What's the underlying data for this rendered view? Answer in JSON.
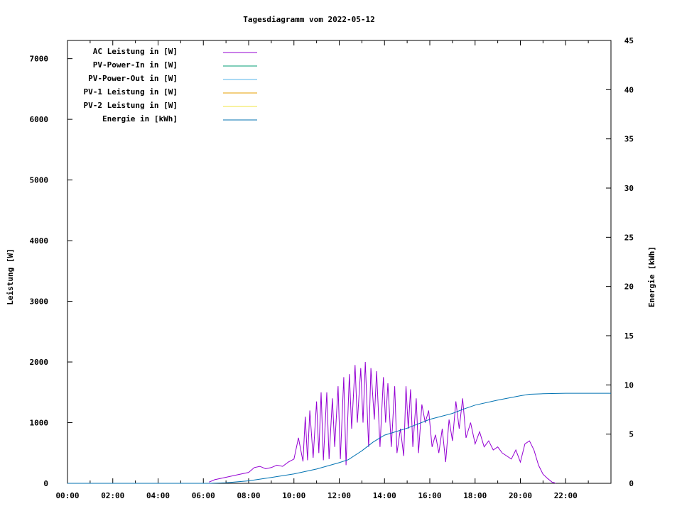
{
  "chart_data": {
    "type": "line",
    "title": "Tagesdiagramm vom 2022-05-12",
    "ylabel": "Leistung [W]",
    "y2label": "Energie [kWh]",
    "xlabel": "",
    "x_unit": "hours",
    "xlim": [
      0,
      24
    ],
    "ylim": [
      0,
      7300
    ],
    "y2lim": [
      0,
      45
    ],
    "x_ticks": [
      0,
      2,
      4,
      6,
      8,
      10,
      12,
      14,
      16,
      18,
      20,
      22
    ],
    "x_tick_labels": [
      "00:00",
      "02:00",
      "04:00",
      "06:00",
      "08:00",
      "10:00",
      "12:00",
      "14:00",
      "16:00",
      "18:00",
      "20:00",
      "22:00"
    ],
    "y_ticks": [
      0,
      1000,
      2000,
      3000,
      4000,
      5000,
      6000,
      7000
    ],
    "y_tick_labels": [
      "0",
      "1000",
      "2000",
      "3000",
      "4000",
      "5000",
      "6000",
      "7000"
    ],
    "y2_ticks": [
      0,
      5,
      10,
      15,
      20,
      25,
      30,
      35,
      40,
      45
    ],
    "y2_tick_labels": [
      "0",
      "5",
      "10",
      "15",
      "20",
      "25",
      "30",
      "35",
      "40",
      "45"
    ],
    "legend_position": "top-left",
    "grid": false,
    "series": [
      {
        "name": "AC Leistung in [W]",
        "axis": "left",
        "color": "#9400d3",
        "x": [
          6.25,
          6.5,
          7.0,
          7.5,
          8.0,
          8.25,
          8.5,
          8.75,
          9.0,
          9.25,
          9.5,
          9.75,
          10.0,
          10.2,
          10.4,
          10.5,
          10.6,
          10.7,
          10.85,
          11.0,
          11.1,
          11.2,
          11.3,
          11.45,
          11.55,
          11.7,
          11.8,
          11.95,
          12.05,
          12.2,
          12.3,
          12.45,
          12.55,
          12.7,
          12.8,
          12.95,
          13.05,
          13.15,
          13.3,
          13.4,
          13.55,
          13.65,
          13.8,
          13.95,
          14.05,
          14.15,
          14.3,
          14.45,
          14.55,
          14.7,
          14.85,
          14.95,
          15.05,
          15.15,
          15.25,
          15.4,
          15.5,
          15.65,
          15.8,
          15.95,
          16.1,
          16.25,
          16.4,
          16.55,
          16.7,
          16.85,
          17.0,
          17.15,
          17.3,
          17.45,
          17.6,
          17.8,
          18.0,
          18.2,
          18.4,
          18.6,
          18.8,
          19.0,
          19.2,
          19.4,
          19.6,
          19.8,
          20.0,
          20.2,
          20.4,
          20.6,
          20.8,
          21.0,
          21.2,
          21.4,
          21.5,
          21.55
        ],
        "y": [
          20,
          60,
          100,
          140,
          180,
          260,
          280,
          240,
          260,
          300,
          280,
          350,
          400,
          750,
          360,
          1100,
          380,
          1200,
          420,
          1350,
          500,
          1500,
          380,
          1500,
          400,
          1400,
          600,
          1600,
          400,
          1750,
          300,
          1800,
          900,
          1950,
          1000,
          1900,
          1000,
          2000,
          600,
          1900,
          1050,
          1850,
          600,
          1750,
          1000,
          1650,
          600,
          1600,
          500,
          900,
          450,
          1600,
          900,
          1550,
          600,
          1400,
          500,
          1300,
          1000,
          1200,
          600,
          800,
          500,
          900,
          350,
          1050,
          700,
          1350,
          900,
          1400,
          750,
          1000,
          650,
          850,
          600,
          700,
          550,
          600,
          500,
          450,
          400,
          550,
          350,
          650,
          700,
          550,
          300,
          150,
          80,
          20,
          10,
          0
        ]
      },
      {
        "name": "PV-Power-In in [W]",
        "axis": "left",
        "color": "#009e73",
        "x": [],
        "y": []
      },
      {
        "name": "PV-Power-Out in [W]",
        "axis": "left",
        "color": "#56b4e9",
        "x": [],
        "y": []
      },
      {
        "name": "PV-1 Leistung in [W]",
        "axis": "left",
        "color": "#e69f00",
        "x": [],
        "y": []
      },
      {
        "name": "PV-2 Leistung in [W]",
        "axis": "left",
        "color": "#f0e442",
        "x": [],
        "y": []
      },
      {
        "name": "Energie in [kWh]",
        "axis": "right",
        "color": "#0072b2",
        "x": [
          0,
          6.25,
          7.0,
          8.0,
          9.0,
          10.0,
          11.0,
          12.0,
          12.4,
          13.0,
          13.5,
          14.0,
          15.0,
          16.0,
          17.0,
          17.5,
          18.0,
          19.0,
          20.0,
          20.4,
          21.0,
          22.0,
          24.0
        ],
        "y": [
          0,
          0,
          0.05,
          0.25,
          0.6,
          0.95,
          1.45,
          2.1,
          2.4,
          3.3,
          4.2,
          4.9,
          5.6,
          6.5,
          7.1,
          7.55,
          7.95,
          8.45,
          8.9,
          9.05,
          9.1,
          9.15,
          9.15
        ]
      }
    ]
  }
}
